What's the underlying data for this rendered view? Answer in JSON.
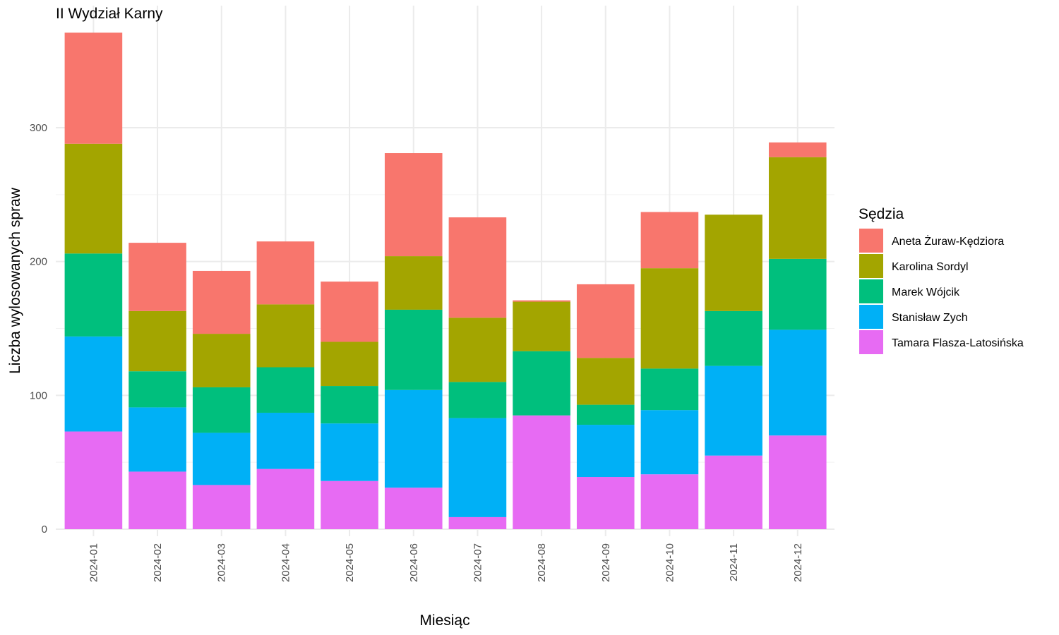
{
  "chart_data": {
    "type": "bar",
    "stacked": true,
    "title": "II Wydział Karny",
    "xlabel": "Miesiąc",
    "ylabel": "Liczba wylosowanych spraw",
    "ylim": [
      0,
      375
    ],
    "y_ticks": [
      0,
      100,
      200,
      300
    ],
    "grid": true,
    "legend_title": "Sędzia",
    "legend_position": "right",
    "categories": [
      "2024-01",
      "2024-02",
      "2024-03",
      "2024-04",
      "2024-05",
      "2024-06",
      "2024-07",
      "2024-08",
      "2024-09",
      "2024-10",
      "2024-11",
      "2024-12"
    ],
    "series": [
      {
        "name": "Aneta Żuraw-Kędziora",
        "color": "#F8766D",
        "values": [
          83,
          51,
          47,
          47,
          45,
          77,
          75,
          1,
          55,
          42,
          0,
          11
        ]
      },
      {
        "name": "Karolina Sordyl",
        "color": "#A3A500",
        "values": [
          82,
          45,
          40,
          47,
          33,
          40,
          48,
          37,
          35,
          75,
          72,
          76
        ]
      },
      {
        "name": "Marek Wójcik",
        "color": "#00BF7D",
        "values": [
          62,
          27,
          34,
          34,
          28,
          60,
          27,
          48,
          15,
          31,
          41,
          53
        ]
      },
      {
        "name": "Stanisław Zych",
        "color": "#00B0F6",
        "values": [
          71,
          48,
          39,
          42,
          43,
          73,
          74,
          0,
          39,
          48,
          67,
          79
        ]
      },
      {
        "name": "Tamara Flasza-Latosińska",
        "color": "#E76BF3",
        "values": [
          73,
          43,
          33,
          45,
          36,
          31,
          9,
          85,
          39,
          41,
          55,
          70
        ]
      }
    ]
  }
}
